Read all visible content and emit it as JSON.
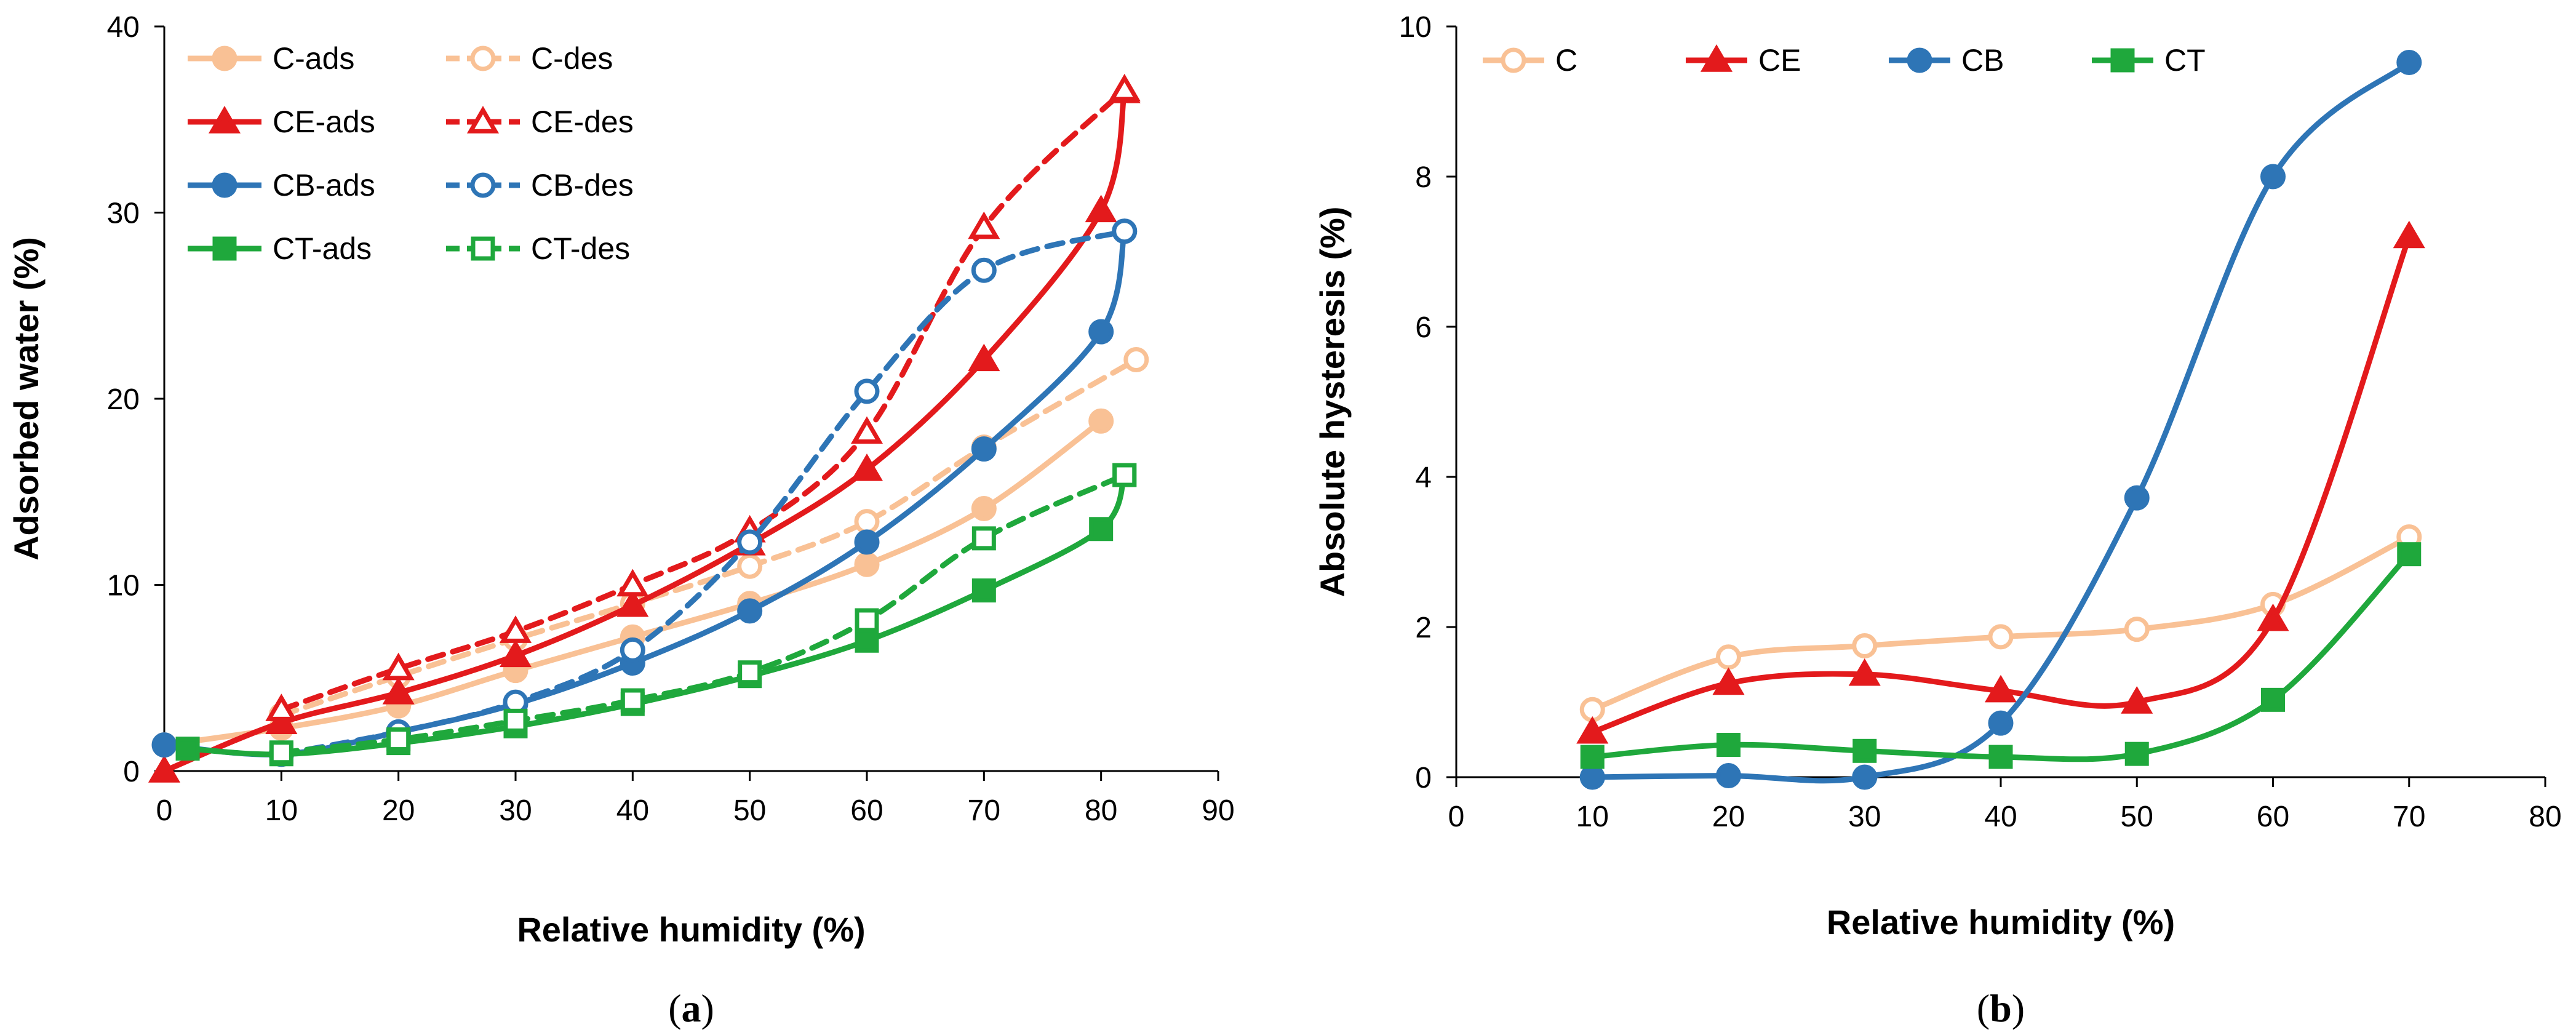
{
  "chart_data": [
    {
      "type": "line",
      "panel_label": "(a)",
      "panel_label_bold": "a",
      "xlabel": "Relative humidity (%)",
      "ylabel": "Adsorbed water (%)",
      "xlim": [
        0,
        90
      ],
      "ylim": [
        0,
        40
      ],
      "xticks": [
        0,
        10,
        20,
        30,
        40,
        50,
        60,
        70,
        80,
        90
      ],
      "yticks": [
        0,
        10,
        20,
        30,
        40
      ],
      "legend_position": "top-left",
      "legend_columns": 2,
      "series": [
        {
          "name": "C-ads",
          "color": "#F9C195",
          "marker": "circle",
          "filled": true,
          "dashed": false,
          "x": [
            0,
            10,
            20,
            30,
            40,
            50,
            60,
            70,
            80
          ],
          "y": [
            1.4,
            2.3,
            3.5,
            5.4,
            7.2,
            9.0,
            11.1,
            14.1,
            18.8
          ]
        },
        {
          "name": "C-des",
          "color": "#F9C195",
          "marker": "circle",
          "filled": false,
          "dashed": true,
          "x": [
            10,
            20,
            30,
            40,
            50,
            60,
            70,
            83
          ],
          "y": [
            3.0,
            5.1,
            7.1,
            9.0,
            11.0,
            13.4,
            17.4,
            22.1
          ]
        },
        {
          "name": "CE-ads",
          "color": "#E31A1C",
          "marker": "triangle",
          "filled": true,
          "dashed": false,
          "x": [
            0,
            10,
            20,
            30,
            40,
            50,
            60,
            70,
            80,
            82
          ],
          "y": [
            0.0,
            2.6,
            4.2,
            6.2,
            8.9,
            12.2,
            16.2,
            22.1,
            30.1,
            36.5
          ]
        },
        {
          "name": "CE-des",
          "color": "#E31A1C",
          "marker": "triangle",
          "filled": false,
          "dashed": true,
          "x": [
            10,
            20,
            30,
            40,
            50,
            60,
            70,
            82
          ],
          "y": [
            3.3,
            5.5,
            7.5,
            10.0,
            12.9,
            18.2,
            29.2,
            36.6
          ]
        },
        {
          "name": "CB-ads",
          "color": "#2E75B6",
          "marker": "circle",
          "filled": true,
          "dashed": false,
          "x": [
            0,
            10,
            20,
            30,
            40,
            50,
            60,
            70,
            80,
            82
          ],
          "y": [
            1.4,
            0.9,
            2.1,
            3.6,
            5.8,
            8.6,
            12.3,
            17.3,
            23.6,
            29.0
          ]
        },
        {
          "name": "CB-des",
          "color": "#2E75B6",
          "marker": "circle",
          "filled": false,
          "dashed": true,
          "x": [
            10,
            20,
            30,
            40,
            50,
            60,
            70,
            82
          ],
          "y": [
            0.9,
            2.1,
            3.7,
            6.5,
            12.3,
            20.4,
            26.9,
            29.0
          ]
        },
        {
          "name": "CT-ads",
          "color": "#1FA83C",
          "marker": "square",
          "filled": true,
          "dashed": false,
          "x": [
            2,
            10,
            20,
            30,
            40,
            50,
            60,
            70,
            80,
            82
          ],
          "y": [
            1.2,
            0.9,
            1.5,
            2.4,
            3.6,
            5.1,
            7.0,
            9.7,
            13.0,
            15.9
          ]
        },
        {
          "name": "CT-des",
          "color": "#1FA83C",
          "marker": "square",
          "filled": false,
          "dashed": true,
          "x": [
            10,
            20,
            30,
            40,
            50,
            60,
            70,
            82
          ],
          "y": [
            1.0,
            1.7,
            2.7,
            3.8,
            5.3,
            8.1,
            12.5,
            15.9
          ]
        }
      ]
    },
    {
      "type": "line",
      "panel_label": "(b)",
      "panel_label_bold": "b",
      "xlabel": "Relative humidity (%)",
      "ylabel": "Absolute hysteresis (%)",
      "xlim": [
        0,
        80
      ],
      "ylim": [
        0,
        10
      ],
      "xticks": [
        0,
        10,
        20,
        30,
        40,
        50,
        60,
        70,
        80
      ],
      "yticks": [
        0,
        2,
        4,
        6,
        8,
        10
      ],
      "legend_position": "top",
      "legend_columns": 4,
      "series": [
        {
          "name": "C",
          "color": "#F9C195",
          "marker": "circle",
          "filled": false,
          "dashed": false,
          "x": [
            10,
            20,
            30,
            40,
            50,
            60,
            70
          ],
          "y": [
            0.9,
            1.6,
            1.75,
            1.87,
            1.97,
            2.3,
            3.2
          ]
        },
        {
          "name": "CE",
          "color": "#E31A1C",
          "marker": "triangle",
          "filled": true,
          "dashed": false,
          "x": [
            10,
            20,
            30,
            40,
            50,
            60,
            70
          ],
          "y": [
            0.6,
            1.25,
            1.37,
            1.15,
            1.0,
            2.1,
            7.2
          ]
        },
        {
          "name": "CB",
          "color": "#2E75B6",
          "marker": "circle",
          "filled": true,
          "dashed": false,
          "x": [
            10,
            20,
            30,
            40,
            50,
            60,
            70
          ],
          "y": [
            0.0,
            0.02,
            0.0,
            0.72,
            3.72,
            8.0,
            9.52
          ]
        },
        {
          "name": "CT",
          "color": "#1FA83C",
          "marker": "square",
          "filled": true,
          "dashed": false,
          "x": [
            10,
            20,
            30,
            40,
            50,
            60,
            70
          ],
          "y": [
            0.27,
            0.43,
            0.35,
            0.27,
            0.31,
            1.03,
            2.97
          ]
        }
      ]
    }
  ]
}
